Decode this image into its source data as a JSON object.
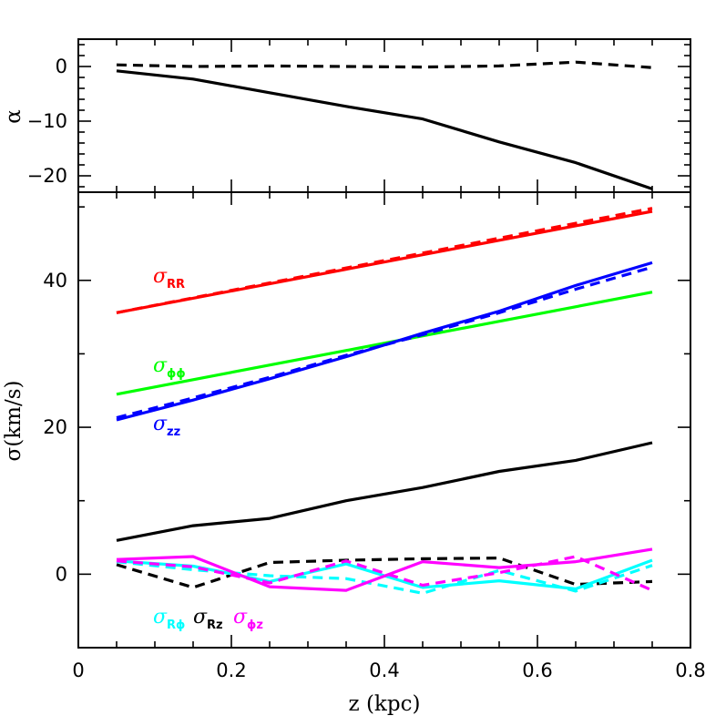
{
  "chart_data": [
    {
      "type": "line",
      "panel": "top",
      "ylabel": "α",
      "xlim": [
        0,
        0.8
      ],
      "ylim": [
        -23,
        5
      ],
      "yticks": [
        0,
        -10,
        -20
      ],
      "ytick_labels": [
        "0",
        "−10",
        "−20"
      ],
      "series": [
        {
          "color": "#000000",
          "dash": "solid",
          "x": [
            0.05,
            0.15,
            0.25,
            0.35,
            0.45,
            0.55,
            0.65,
            0.75
          ],
          "y": [
            -0.8,
            -2.3,
            -4.8,
            -7.3,
            -9.6,
            -13.8,
            -17.6,
            -22.4
          ]
        },
        {
          "color": "#000000",
          "dash": "dashed",
          "x": [
            0.05,
            0.15,
            0.25,
            0.35,
            0.45,
            0.55,
            0.65,
            0.75
          ],
          "y": [
            0.3,
            0.0,
            0.1,
            0.0,
            -0.1,
            0.1,
            0.8,
            -0.2
          ]
        }
      ]
    },
    {
      "type": "line",
      "panel": "bottom",
      "xlabel": "z  (kpc)",
      "ylabel": "σ(km/s)",
      "xlim": [
        0,
        0.8
      ],
      "ylim": [
        -10,
        52
      ],
      "xticks": [
        0,
        0.2,
        0.4,
        0.6,
        0.8
      ],
      "xtick_labels": [
        "0",
        "0.2",
        "0.4",
        "0.6",
        "0.8"
      ],
      "yticks": [
        0,
        20,
        40
      ],
      "ytick_labels": [
        "0",
        "20",
        "40"
      ],
      "series": [
        {
          "key": "RR",
          "color": "#ff0000",
          "dash": "solid",
          "x": [
            0.05,
            0.75
          ],
          "y": [
            35.6,
            49.4
          ]
        },
        {
          "key": "RR",
          "color": "#ff0000",
          "dash": "dashed",
          "x": [
            0.05,
            0.75
          ],
          "y": [
            35.6,
            49.8
          ]
        },
        {
          "key": "phiphi",
          "color": "#00ff00",
          "dash": "solid",
          "x": [
            0.05,
            0.75
          ],
          "y": [
            24.5,
            38.4
          ]
        },
        {
          "key": "zz",
          "color": "#0000ff",
          "dash": "solid",
          "x": [
            0.05,
            0.15,
            0.25,
            0.35,
            0.45,
            0.55,
            0.65,
            0.75
          ],
          "y": [
            21.0,
            23.7,
            26.6,
            29.6,
            32.8,
            35.8,
            39.3,
            42.4
          ]
        },
        {
          "key": "zz",
          "color": "#0000ff",
          "dash": "dashed",
          "x": [
            0.05,
            0.15,
            0.25,
            0.35,
            0.45,
            0.55,
            0.65,
            0.75
          ],
          "y": [
            21.3,
            24.0,
            26.8,
            29.8,
            32.6,
            35.6,
            38.8,
            41.8
          ]
        },
        {
          "key": "total",
          "color": "#000000",
          "dash": "solid",
          "x": [
            0.05,
            0.15,
            0.25,
            0.35,
            0.45,
            0.55,
            0.65,
            0.75
          ],
          "y": [
            4.6,
            6.6,
            7.6,
            10.0,
            11.8,
            14.0,
            15.5,
            17.9
          ]
        },
        {
          "key": "Rz",
          "color": "#000000",
          "dash": "dashed",
          "x": [
            0.05,
            0.15,
            0.25,
            0.35,
            0.45,
            0.55,
            0.65,
            0.75
          ],
          "y": [
            1.3,
            -1.8,
            1.6,
            1.9,
            2.1,
            2.2,
            -1.4,
            -1.0
          ]
        },
        {
          "key": "Rphi",
          "color": "#00ffff",
          "dash": "solid",
          "x": [
            0.05,
            0.15,
            0.25,
            0.35,
            0.45,
            0.55,
            0.65,
            0.75
          ],
          "y": [
            1.8,
            1.1,
            -1.0,
            1.4,
            -1.8,
            -0.9,
            -2.0,
            1.9
          ]
        },
        {
          "key": "Rphi",
          "color": "#00ffff",
          "dash": "dashed",
          "x": [
            0.05,
            0.15,
            0.25,
            0.35,
            0.45,
            0.55,
            0.65,
            0.75
          ],
          "y": [
            1.7,
            0.6,
            -0.2,
            -0.6,
            -2.6,
            0.5,
            -2.3,
            1.2
          ]
        },
        {
          "key": "phiz",
          "color": "#ff00ff",
          "dash": "solid",
          "x": [
            0.05,
            0.15,
            0.25,
            0.35,
            0.45,
            0.55,
            0.65,
            0.75
          ],
          "y": [
            2.0,
            2.4,
            -1.7,
            -2.2,
            1.7,
            0.9,
            1.7,
            3.4
          ]
        },
        {
          "key": "phiz",
          "color": "#ff00ff",
          "dash": "dashed",
          "x": [
            0.05,
            0.15,
            0.25,
            0.35,
            0.45,
            0.55,
            0.65,
            0.75
          ],
          "y": [
            1.8,
            1.0,
            -1.2,
            1.8,
            -1.5,
            0.2,
            2.4,
            -2.2
          ]
        }
      ],
      "labels": [
        {
          "key": "RR",
          "text": "σ",
          "sub": "RR",
          "color": "#ff0000"
        },
        {
          "key": "phiphi",
          "text": "σ",
          "sub": "ϕϕ",
          "color": "#00ff00"
        },
        {
          "key": "zz",
          "text": "σ",
          "sub": "zz",
          "color": "#0000ff"
        },
        {
          "key": "Rphi",
          "text": "σ",
          "sub": "Rϕ",
          "color": "#00ffff"
        },
        {
          "key": "Rz",
          "text": "σ",
          "sub": "Rz",
          "color": "#000000"
        },
        {
          "key": "phiz",
          "text": "σ",
          "sub": "ϕz",
          "color": "#ff00ff"
        }
      ]
    }
  ]
}
